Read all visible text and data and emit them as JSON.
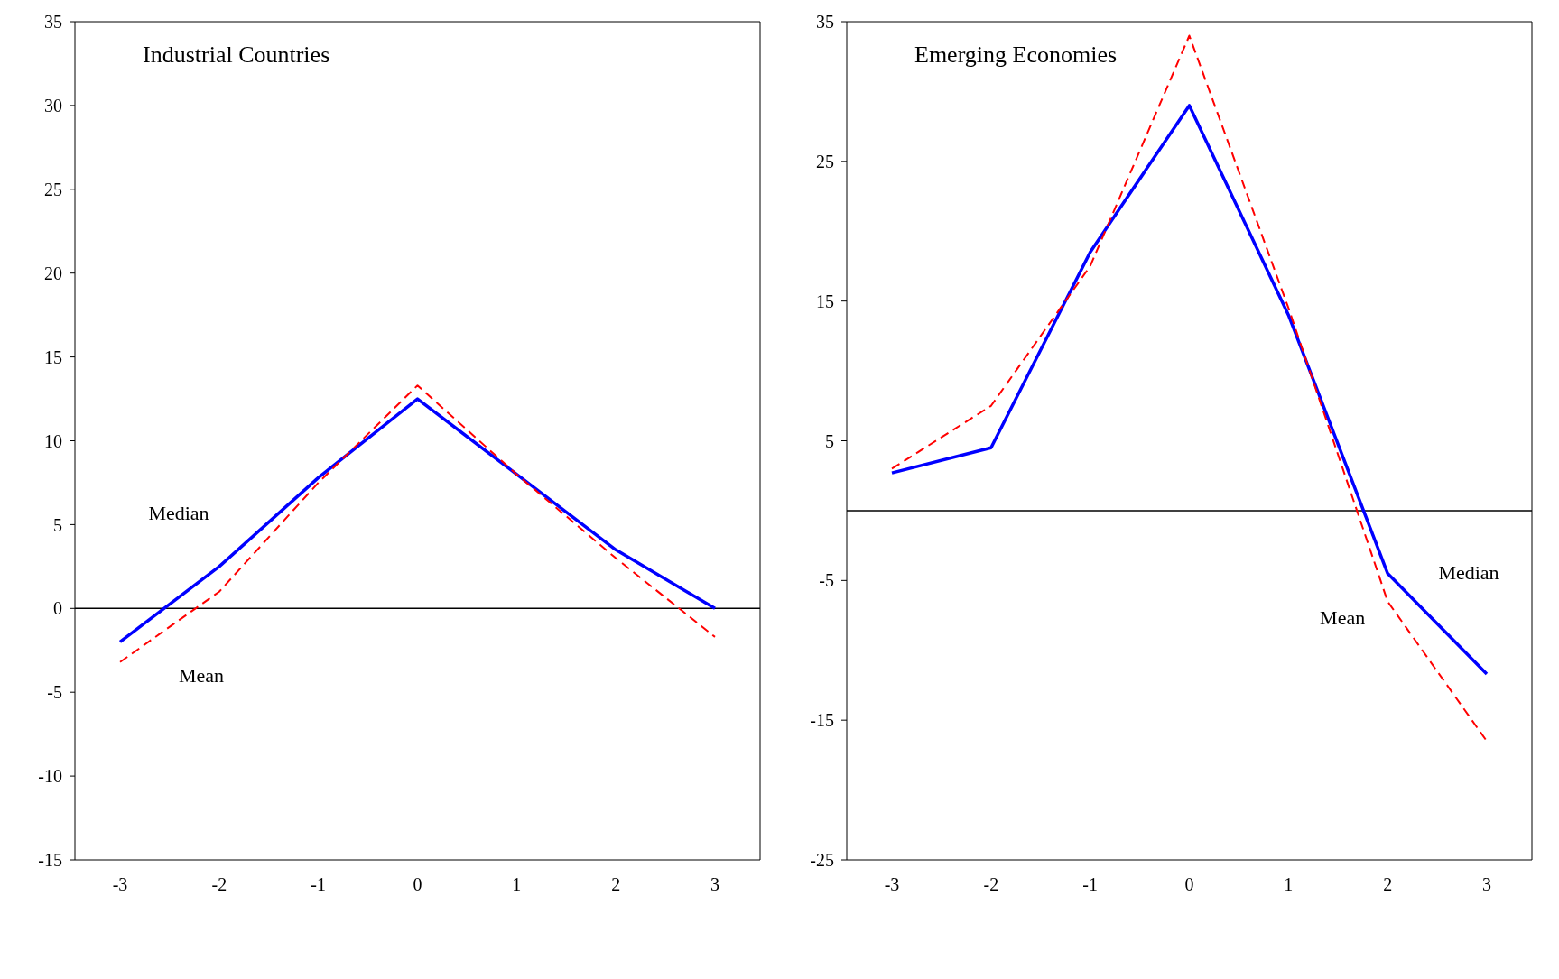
{
  "chart_data": [
    {
      "type": "line",
      "title": "Industrial Countries",
      "categories": [
        "-3",
        "-2",
        "-1",
        "0",
        "1",
        "2",
        "3"
      ],
      "ylim": [
        -15,
        35
      ],
      "yticks": [
        -15,
        -10,
        -5,
        0,
        5,
        10,
        15,
        20,
        25,
        30,
        35
      ],
      "grid": false,
      "legend": false,
      "ref_lines": [
        {
          "axis": "y",
          "value": 0
        }
      ],
      "series": [
        {
          "name": "Median",
          "color": "#0000ff",
          "line_style": "solid",
          "values": [
            -2,
            2.5,
            7.8,
            12.5,
            8,
            3.5,
            0
          ]
        },
        {
          "name": "Mean",
          "color": "#ff0000",
          "line_style": "dashed",
          "values": [
            -3.2,
            1,
            7.5,
            13.3,
            8,
            3,
            -1.7
          ]
        }
      ]
    },
    {
      "type": "line",
      "title": "Emerging Economies",
      "categories": [
        "-3",
        "-2",
        "-1",
        "0",
        "1",
        "2",
        "3"
      ],
      "ylim": [
        -25,
        35
      ],
      "yticks": [
        -25,
        -15,
        -5,
        5,
        15,
        25,
        35
      ],
      "grid": false,
      "legend": false,
      "ref_lines": [
        {
          "axis": "y",
          "value": 0
        }
      ],
      "series": [
        {
          "name": "Median",
          "color": "#0000ff",
          "line_style": "solid",
          "values": [
            2.7,
            4.5,
            18.5,
            29,
            14,
            -4.5,
            -11.7
          ]
        },
        {
          "name": "Mean",
          "color": "#ff0000",
          "line_style": "dashed",
          "values": [
            3,
            7.5,
            17.5,
            34,
            14.5,
            -6.5,
            -16.5
          ]
        }
      ]
    }
  ]
}
